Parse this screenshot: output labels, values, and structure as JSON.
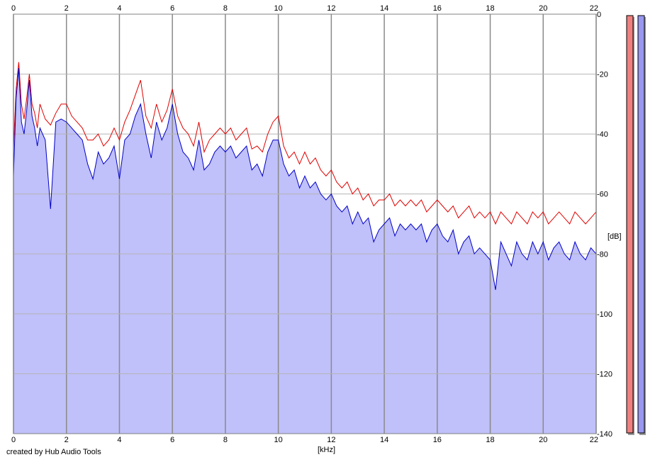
{
  "credit": "created by Hub Audio Tools",
  "chart_data": {
    "type": "line",
    "title": "",
    "xlabel": "[kHz]",
    "ylabel": "[dB]",
    "xlim": [
      0,
      22
    ],
    "ylim": [
      -140,
      0
    ],
    "x_ticks": [
      0,
      2,
      4,
      6,
      8,
      10,
      12,
      14,
      16,
      18,
      20,
      22
    ],
    "y_ticks": [
      0,
      -20,
      -40,
      -60,
      -80,
      -100,
      -120,
      -140
    ],
    "grid": true,
    "series": [
      {
        "color": "#e00000",
        "x": [
          0,
          0.1,
          0.2,
          0.3,
          0.4,
          0.5,
          0.6,
          0.7,
          0.8,
          0.9,
          1.0,
          1.2,
          1.4,
          1.6,
          1.8,
          2.0,
          2.2,
          2.4,
          2.6,
          2.8,
          3.0,
          3.2,
          3.4,
          3.6,
          3.8,
          4.0,
          4.2,
          4.4,
          4.6,
          4.8,
          5.0,
          5.2,
          5.4,
          5.6,
          5.8,
          6.0,
          6.2,
          6.4,
          6.6,
          6.8,
          7.0,
          7.2,
          7.4,
          7.6,
          7.8,
          8.0,
          8.2,
          8.4,
          8.6,
          8.8,
          9.0,
          9.2,
          9.4,
          9.6,
          9.8,
          10.0,
          10.2,
          10.4,
          10.6,
          10.8,
          11.0,
          11.2,
          11.4,
          11.6,
          11.8,
          12.0,
          12.2,
          12.4,
          12.6,
          12.8,
          13.0,
          13.2,
          13.4,
          13.6,
          13.8,
          14.0,
          14.2,
          14.4,
          14.6,
          14.8,
          15.0,
          15.2,
          15.4,
          15.6,
          15.8,
          16.0,
          16.2,
          16.4,
          16.6,
          16.8,
          17.0,
          17.2,
          17.4,
          17.6,
          17.8,
          18.0,
          18.2,
          18.4,
          18.6,
          18.8,
          19.0,
          19.2,
          19.4,
          19.6,
          19.8,
          20.0,
          20.2,
          20.4,
          20.6,
          20.8,
          21.0,
          21.2,
          21.4,
          21.6,
          21.8,
          22.0
        ],
        "values": [
          -45,
          -25,
          -16,
          -30,
          -35,
          -28,
          -20,
          -30,
          -33,
          -38,
          -30,
          -35,
          -37,
          -33,
          -30,
          -30,
          -34,
          -36,
          -38,
          -42,
          -42,
          -40,
          -44,
          -42,
          -38,
          -42,
          -36,
          -32,
          -27,
          -22,
          -34,
          -38,
          -30,
          -36,
          -32,
          -25,
          -34,
          -38,
          -40,
          -44,
          -36,
          -46,
          -42,
          -40,
          -38,
          -40,
          -38,
          -42,
          -40,
          -38,
          -45,
          -44,
          -46,
          -40,
          -36,
          -34,
          -44,
          -48,
          -46,
          -50,
          -46,
          -50,
          -48,
          -52,
          -54,
          -52,
          -56,
          -58,
          -56,
          -60,
          -58,
          -62,
          -60,
          -64,
          -62,
          -62,
          -60,
          -64,
          -62,
          -64,
          -62,
          -64,
          -62,
          -66,
          -64,
          -62,
          -64,
          -66,
          -64,
          -68,
          -66,
          -64,
          -68,
          -66,
          -68,
          -66,
          -70,
          -66,
          -68,
          -70,
          -66,
          -68,
          -70,
          -66,
          -68,
          -66,
          -70,
          -68,
          -66,
          -68,
          -70,
          -66,
          -68,
          -70,
          -68,
          -66
        ]
      },
      {
        "color": "#0000c8",
        "fill": "#c0c0fa",
        "x": [
          0,
          0.1,
          0.2,
          0.3,
          0.4,
          0.5,
          0.6,
          0.7,
          0.8,
          0.9,
          1.0,
          1.2,
          1.4,
          1.6,
          1.8,
          2.0,
          2.2,
          2.4,
          2.6,
          2.8,
          3.0,
          3.2,
          3.4,
          3.6,
          3.8,
          4.0,
          4.2,
          4.4,
          4.6,
          4.8,
          5.0,
          5.2,
          5.4,
          5.6,
          5.8,
          6.0,
          6.2,
          6.4,
          6.6,
          6.8,
          7.0,
          7.2,
          7.4,
          7.6,
          7.8,
          8.0,
          8.2,
          8.4,
          8.6,
          8.8,
          9.0,
          9.2,
          9.4,
          9.6,
          9.8,
          10.0,
          10.2,
          10.4,
          10.6,
          10.8,
          11.0,
          11.2,
          11.4,
          11.6,
          11.8,
          12.0,
          12.2,
          12.4,
          12.6,
          12.8,
          13.0,
          13.2,
          13.4,
          13.6,
          13.8,
          14.0,
          14.2,
          14.4,
          14.6,
          14.8,
          15.0,
          15.2,
          15.4,
          15.6,
          15.8,
          16.0,
          16.2,
          16.4,
          16.6,
          16.8,
          17.0,
          17.2,
          17.4,
          17.6,
          17.8,
          18.0,
          18.2,
          18.4,
          18.6,
          18.8,
          19.0,
          19.2,
          19.4,
          19.6,
          19.8,
          20.0,
          20.2,
          20.4,
          20.6,
          20.8,
          21.0,
          21.2,
          21.4,
          21.6,
          21.8,
          22.0
        ],
        "values": [
          -54,
          -28,
          -18,
          -36,
          -40,
          -32,
          -22,
          -34,
          -38,
          -44,
          -38,
          -42,
          -65,
          -36,
          -35,
          -36,
          -38,
          -40,
          -42,
          -50,
          -55,
          -46,
          -50,
          -48,
          -44,
          -55,
          -42,
          -40,
          -34,
          -30,
          -40,
          -48,
          -36,
          -42,
          -38,
          -30,
          -40,
          -46,
          -48,
          -52,
          -42,
          -52,
          -50,
          -46,
          -44,
          -46,
          -44,
          -48,
          -46,
          -44,
          -52,
          -50,
          -54,
          -46,
          -42,
          -42,
          -50,
          -54,
          -52,
          -58,
          -54,
          -58,
          -56,
          -60,
          -62,
          -60,
          -64,
          -66,
          -64,
          -70,
          -66,
          -70,
          -68,
          -76,
          -72,
          -70,
          -68,
          -74,
          -70,
          -72,
          -70,
          -72,
          -70,
          -76,
          -72,
          -70,
          -74,
          -76,
          -72,
          -80,
          -76,
          -74,
          -80,
          -78,
          -80,
          -82,
          -92,
          -76,
          -80,
          -84,
          -76,
          -80,
          -82,
          -76,
          -80,
          -76,
          -82,
          -78,
          -76,
          -80,
          -82,
          -76,
          -80,
          -82,
          -78,
          -80
        ]
      }
    ]
  }
}
